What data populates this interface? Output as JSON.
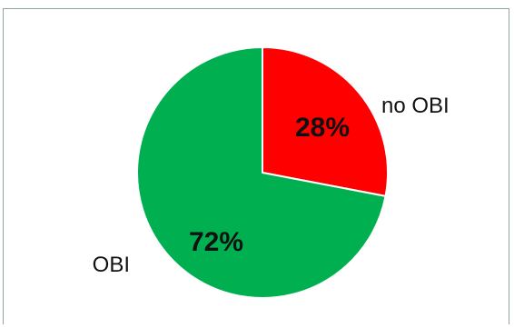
{
  "chart_data": {
    "type": "pie",
    "title": "",
    "slices": [
      {
        "label": "no OBI",
        "value": 28,
        "value_label": "28%",
        "color": "#ff0000"
      },
      {
        "label": "OBI",
        "value": 72,
        "value_label": "72%",
        "color": "#00b050"
      }
    ],
    "start_angle_deg": 0,
    "direction": "clockwise",
    "legend": "none"
  }
}
